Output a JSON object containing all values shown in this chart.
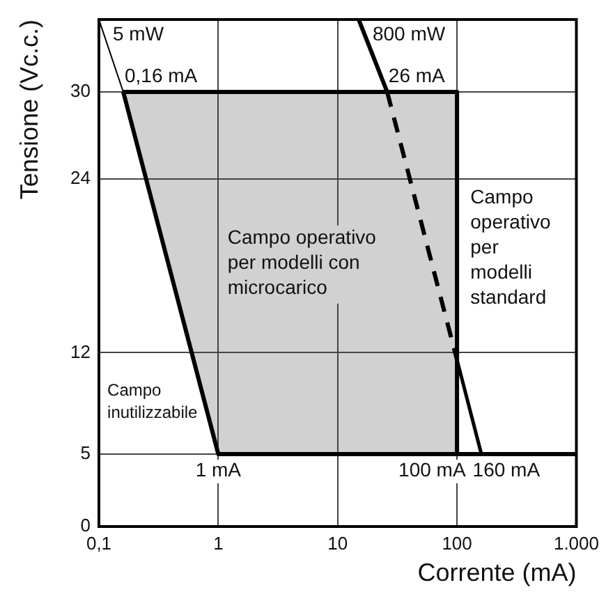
{
  "chart_data": {
    "type": "line",
    "xlabel": "Corrente (mA)",
    "ylabel": "Tensione (Vc.c.)",
    "log": "x",
    "xlim": [
      0.1,
      1000
    ],
    "xticks": [
      {
        "value": 0.1,
        "label": "0,1"
      },
      1,
      10,
      100,
      {
        "value": 1000,
        "label": "1.000"
      }
    ],
    "ylim": [
      0,
      35
    ],
    "yticks": [
      0,
      5,
      12,
      24,
      30
    ],
    "grid": true,
    "legend": false,
    "marker": "none",
    "series": [
      {
        "type": "line",
        "color": "#000000",
        "x": [
          0.16,
          1,
          100
        ],
        "values": [
          30,
          30,
          30
        ],
        "lower": [
          30,
          5,
          5
        ],
        "upper": [
          30,
          30,
          30
        ]
      },
      {
        "type": "line",
        "color": "#000000",
        "x": [
          1000,
          1,
          0.16
        ],
        "values": [
          5,
          5,
          30
        ]
      },
      {
        "type": "line",
        "color": "#000000",
        "x": [
          100,
          100
        ],
        "values": [
          30,
          5
        ]
      },
      {
        "type": "line",
        "name": "5 mW",
        "color": "#000000",
        "x": [
          0.1,
          0.16
        ],
        "values": [
          35,
          30
        ]
      },
      {
        "type": "line",
        "name": "800 mW",
        "color": "#000000",
        "x": [
          15,
          26
        ],
        "values": [
          35,
          30
        ]
      },
      {
        "type": "line",
        "color": "#000000",
        "x": [
          26,
          100
        ],
        "values": [
          30,
          11.5
        ],
        "line_style": "dashed"
      },
      {
        "type": "line",
        "color": "#000000",
        "x": [
          100,
          160
        ],
        "values": [
          11.5,
          5
        ]
      }
    ],
    "annotations": [
      {
        "text": "0,16 mA",
        "x": 0.16,
        "y": 30
      },
      {
        "text": "26 mA",
        "x": 26,
        "y": 30
      },
      {
        "text": "1 mA",
        "x": 1,
        "y": 5
      },
      {
        "text": "100 mA",
        "x": 100,
        "y": 5
      },
      {
        "text": "160 mA",
        "x": 160,
        "y": 5
      },
      "Campo operativo per modelli con microcarico",
      "Campo operativo per modelli standard",
      "Campo inutilizzabile"
    ]
  }
}
